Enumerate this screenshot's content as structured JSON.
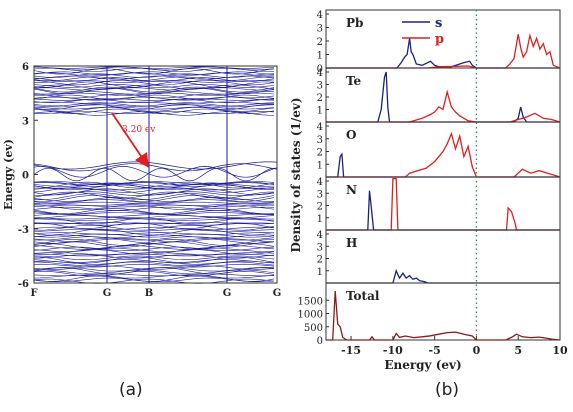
{
  "captions": {
    "a": "(a)",
    "b": "(b)"
  },
  "colors": {
    "band": "#1c1c9a",
    "s": "#1a237e",
    "p": "#e02020",
    "total": "#8b1a1a",
    "fermi": "#2e8b57",
    "arrow": "#e02020"
  },
  "chart_data": [
    {
      "type": "line",
      "panel": "a",
      "ylabel": "Energy (ev)",
      "ylim": [
        -6,
        6
      ],
      "yticks": [
        "6",
        "3",
        "0",
        "-3",
        "-6"
      ],
      "kpath": [
        "F",
        "G",
        "B",
        "G",
        "G"
      ],
      "gap_annotation": "3.20 ev",
      "gap_ev": 3.2,
      "valence_region_ev": [
        -6,
        0.5
      ],
      "conduction_region_ev": [
        3.2,
        6
      ]
    },
    {
      "type": "line",
      "panel": "b",
      "ylabel": "Density of states (1/ev)",
      "xlabel": "Energy (ev)",
      "xlim": [
        -18,
        10
      ],
      "xticks": [
        "-15",
        "-10",
        "-5",
        "0",
        "5",
        "10"
      ],
      "legend": [
        "s",
        "p"
      ],
      "fermi_level": 0,
      "subplots": [
        {
          "label": "Pb",
          "ylim": [
            0,
            4
          ],
          "yticks": [
            "4",
            "3",
            "2",
            "1",
            "0"
          ],
          "series": [
            {
              "name": "s",
              "x": [
                -18,
                -9.5,
                -9.0,
                -8.6,
                -8.3,
                -8.0,
                -7.8,
                -7.6,
                -7.2,
                -6.5,
                -5.5,
                -5.0,
                -4.5,
                -3.0,
                -1.5,
                -0.8,
                -0.5,
                0,
                10
              ],
              "values": [
                0,
                0,
                0.4,
                0.8,
                1.0,
                2.2,
                1.2,
                1.0,
                0.3,
                0.2,
                0.5,
                0.2,
                0.1,
                0.1,
                0.4,
                0.5,
                0.2,
                0,
                0
              ]
            },
            {
              "name": "p",
              "x": [
                -18,
                -6,
                -4,
                -1,
                0,
                3.5,
                4.0,
                4.5,
                5.0,
                5.3,
                5.6,
                6.0,
                6.4,
                6.8,
                7.2,
                7.6,
                8.0,
                8.4,
                8.8,
                9.2,
                10
              ],
              "values": [
                0,
                0,
                0.1,
                0.15,
                0,
                0,
                0.3,
                0.7,
                2.5,
                1.5,
                0.8,
                1.2,
                2.4,
                1.6,
                2.2,
                1.4,
                1.8,
                1.0,
                1.2,
                0.2,
                0
              ]
            }
          ]
        },
        {
          "label": "Te",
          "ylim": [
            0,
            4
          ],
          "yticks": [
            "4",
            "3",
            "2",
            "1"
          ],
          "series": [
            {
              "name": "s",
              "x": [
                -18,
                -11.8,
                -11.4,
                -11.0,
                -10.8,
                -10.6,
                -10.4,
                4.5,
                5.0,
                5.3,
                5.6,
                6.0,
                10
              ],
              "values": [
                0,
                0,
                1.0,
                3.6,
                4.0,
                1.2,
                0,
                0,
                0.3,
                1.2,
                0.4,
                0,
                0
              ]
            },
            {
              "name": "p",
              "x": [
                -18,
                -8,
                -6.5,
                -5.5,
                -5.0,
                -4.5,
                -4.0,
                -3.5,
                -3.0,
                -2.5,
                -2.0,
                -1.5,
                -1.0,
                0,
                4.0,
                6.0,
                7.0,
                8.0,
                9.0,
                10
              ],
              "values": [
                0,
                0,
                0.3,
                0.6,
                0.8,
                1.2,
                1.0,
                2.4,
                1.2,
                0.8,
                0.5,
                0.3,
                0.1,
                0,
                0,
                0.4,
                0.7,
                0.3,
                0.2,
                0
              ]
            }
          ]
        },
        {
          "label": "O",
          "ylim": [
            0,
            4
          ],
          "yticks": [
            "4",
            "3",
            "2",
            "1"
          ],
          "series": [
            {
              "name": "s",
              "x": [
                -18,
                -16.6,
                -16.3,
                -16.1,
                -15.9,
                10
              ],
              "values": [
                0,
                0,
                1.6,
                1.8,
                0,
                0
              ]
            },
            {
              "name": "p",
              "x": [
                -18,
                -8.5,
                -8.0,
                -7.0,
                -6.0,
                -5.0,
                -4.5,
                -4.0,
                -3.5,
                -3.0,
                -2.5,
                -2.0,
                -1.5,
                -1.0,
                -0.5,
                0,
                4.5,
                5.5,
                6.5,
                7.5,
                8.5,
                9.0,
                10
              ],
              "values": [
                0,
                0,
                0.3,
                0.5,
                0.7,
                1.2,
                1.6,
                2.0,
                2.6,
                3.4,
                2.2,
                3.2,
                1.6,
                2.4,
                0.8,
                0,
                0,
                0.6,
                0.3,
                0.5,
                0.3,
                0.2,
                0
              ]
            }
          ]
        },
        {
          "label": "N",
          "ylim": [
            0,
            4
          ],
          "yticks": [
            "4",
            "3",
            "2",
            "1"
          ],
          "series": [
            {
              "name": "s",
              "x": [
                -18,
                -13.0,
                -12.8,
                -12.6,
                -12.3,
                10
              ],
              "values": [
                0,
                0,
                3.2,
                2.0,
                0,
                0
              ]
            },
            {
              "name": "p",
              "x": [
                -18,
                -10.2,
                -10.0,
                -9.6,
                -9.4,
                3.6,
                3.8,
                4.2,
                4.6,
                4.8,
                10
              ],
              "values": [
                0,
                0,
                4.2,
                4.2,
                0,
                0,
                1.8,
                1.5,
                0.6,
                0,
                0
              ]
            }
          ]
        },
        {
          "label": "H",
          "ylim": [
            0,
            4
          ],
          "yticks": [
            "4",
            "3",
            "2",
            "1"
          ],
          "series": [
            {
              "name": "s",
              "x": [
                -18,
                -10.0,
                -9.6,
                -9.2,
                -8.8,
                -8.4,
                -8.0,
                -7.6,
                -7.2,
                -6.8,
                -6.2,
                -5.8,
                10
              ],
              "values": [
                0,
                0,
                1.0,
                0.4,
                0.8,
                0.4,
                0.6,
                0.3,
                0.4,
                0.2,
                0.1,
                0,
                0
              ]
            }
          ]
        },
        {
          "label": "Total",
          "ylim": [
            0,
            2000
          ],
          "yticks": [
            "1500",
            "1000",
            "500",
            "0"
          ],
          "series": [
            {
              "name": "Total",
              "x": [
                -18,
                -17.2,
                -16.9,
                -16.6,
                -16.3,
                -16.0,
                -15.5,
                -12.8,
                -12.5,
                -12.2,
                -10.0,
                -9.6,
                -9.2,
                -8.5,
                -7.5,
                -6.5,
                -5.5,
                -4.5,
                -3.5,
                -2.5,
                -1.5,
                -0.5,
                0,
                3.5,
                4.2,
                4.8,
                5.5,
                6.5,
                7.5,
                8.5,
                9.0,
                10
              ],
              "values": [
                0,
                0,
                1850,
                600,
                500,
                100,
                0,
                0,
                120,
                0,
                0,
                250,
                100,
                150,
                90,
                120,
                160,
                220,
                280,
                300,
                220,
                150,
                0,
                0,
                100,
                220,
                120,
                90,
                110,
                60,
                30,
                0
              ]
            }
          ]
        }
      ]
    }
  ]
}
